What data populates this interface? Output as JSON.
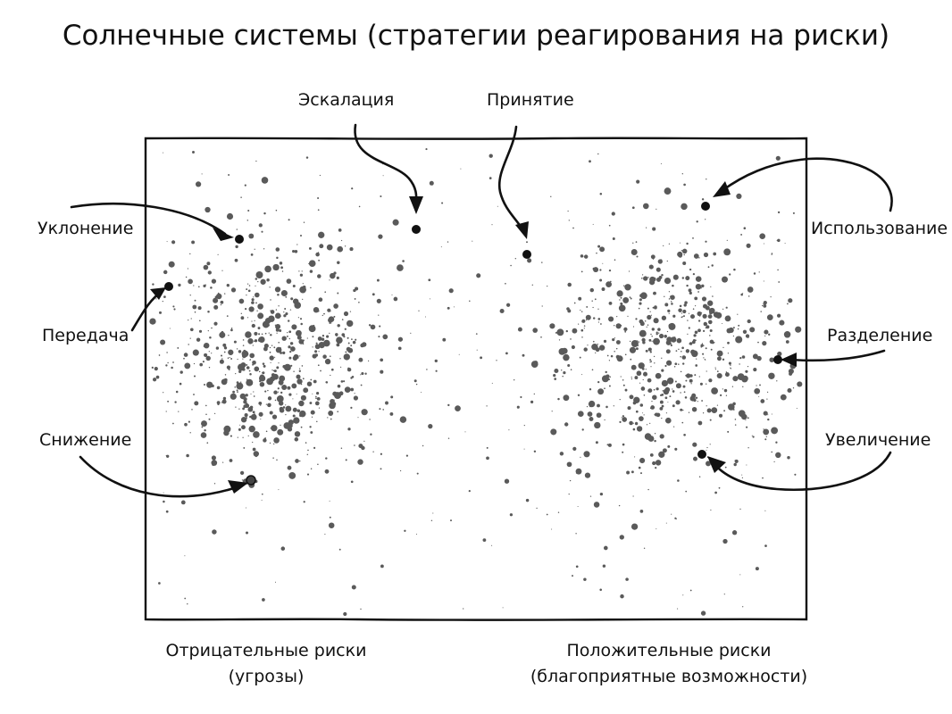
{
  "title": "Солнечные системы (стратегии реагирования на риски)",
  "labels": {
    "avoid": "Уклонение",
    "transfer": "Передача",
    "mitigate": "Снижение",
    "escalate": "Эскалация",
    "accept": "Принятие",
    "exploit": "Использование",
    "share": "Разделение",
    "enhance": "Увеличение"
  },
  "captions": {
    "negative_line1": "Отрицательные риски",
    "negative_line2": "(угрозы)",
    "positive_line1": "Положительные риски",
    "positive_line2": "(благоприятные возможности)"
  },
  "colors": {
    "ink": "#111111",
    "stars": "#5a5a5a",
    "background": "#ffffff"
  }
}
